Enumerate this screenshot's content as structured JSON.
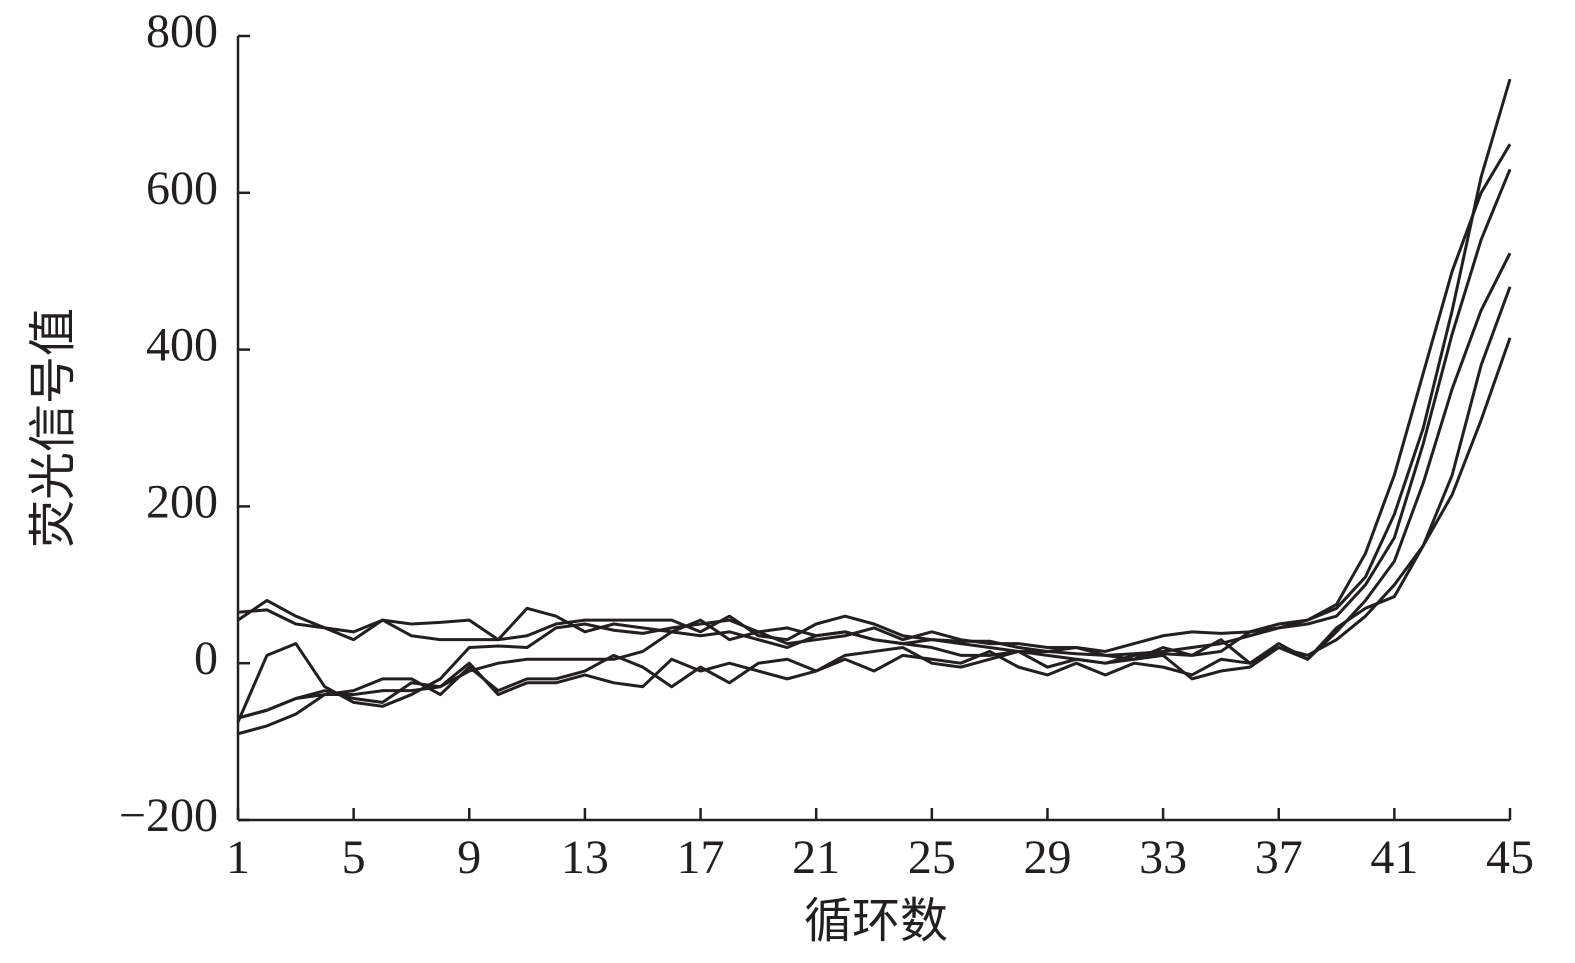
{
  "chart_data": {
    "type": "line",
    "xlabel": "循环数",
    "ylabel": "荧光信号值",
    "x": [
      1,
      2,
      3,
      4,
      5,
      6,
      7,
      8,
      9,
      10,
      11,
      12,
      13,
      14,
      15,
      16,
      17,
      18,
      19,
      20,
      21,
      22,
      23,
      24,
      25,
      26,
      27,
      28,
      29,
      30,
      31,
      32,
      33,
      34,
      35,
      36,
      37,
      38,
      39,
      40,
      41,
      42,
      43,
      44,
      45
    ],
    "xlim": [
      1,
      45
    ],
    "xticks": [
      1,
      5,
      9,
      13,
      17,
      21,
      25,
      29,
      33,
      37,
      41,
      45
    ],
    "ylim": [
      -200,
      800
    ],
    "yticks": [
      {
        "value": -200,
        "label": "−200"
      },
      0,
      200,
      400,
      600,
      800
    ],
    "grid": false,
    "series": [
      {
        "color": "#231f20",
        "values": [
          65,
          68,
          50,
          45,
          40,
          55,
          50,
          52,
          55,
          30,
          70,
          60,
          40,
          50,
          45,
          40,
          55,
          30,
          40,
          45,
          35,
          40,
          30,
          25,
          30,
          25,
          20,
          15,
          15,
          12,
          10,
          12,
          15,
          20,
          25,
          35,
          45,
          55,
          70,
          110,
          190,
          300,
          450,
          620,
          745
        ]
      },
      {
        "color": "#231f20",
        "values": [
          55,
          80,
          60,
          45,
          30,
          55,
          35,
          30,
          30,
          30,
          35,
          50,
          55,
          55,
          55,
          55,
          40,
          60,
          35,
          30,
          50,
          60,
          50,
          35,
          30,
          28,
          28,
          20,
          15,
          20,
          10,
          5,
          20,
          10,
          15,
          40,
          50,
          55,
          75,
          140,
          240,
          370,
          500,
          600,
          662
        ]
      },
      {
        "color": "#231f20",
        "values": [
          -75,
          10,
          25,
          -30,
          -50,
          -55,
          -40,
          -20,
          20,
          22,
          20,
          45,
          50,
          42,
          38,
          45,
          50,
          55,
          40,
          25,
          30,
          35,
          45,
          30,
          40,
          30,
          25,
          25,
          20,
          20,
          15,
          25,
          35,
          40,
          38,
          40,
          45,
          50,
          60,
          100,
          160,
          280,
          420,
          540,
          630
        ]
      },
      {
        "color": "#231f20",
        "values": [
          -70,
          -60,
          -45,
          -40,
          -40,
          -35,
          -35,
          -30,
          -10,
          0,
          5,
          5,
          5,
          5,
          15,
          40,
          35,
          40,
          30,
          20,
          35,
          40,
          30,
          25,
          20,
          10,
          10,
          15,
          10,
          5,
          0,
          10,
          12,
          10,
          30,
          0,
          20,
          5,
          40,
          80,
          130,
          230,
          350,
          450,
          523
        ]
      },
      {
        "color": "#231f20",
        "values": [
          -90,
          -80,
          -65,
          -40,
          -35,
          -20,
          -20,
          -40,
          -5,
          -35,
          -20,
          -20,
          -10,
          10,
          -5,
          -30,
          -5,
          -25,
          0,
          5,
          -10,
          10,
          15,
          20,
          0,
          -5,
          5,
          15,
          -5,
          5,
          0,
          5,
          10,
          -20,
          -10,
          -5,
          20,
          10,
          30,
          60,
          100,
          150,
          240,
          380,
          480
        ]
      },
      {
        "color": "#231f20",
        "values": [
          -70,
          -60,
          -45,
          -35,
          -45,
          -50,
          -25,
          -30,
          0,
          -40,
          -25,
          -25,
          -15,
          -25,
          -30,
          5,
          -10,
          0,
          -10,
          -20,
          -10,
          5,
          -10,
          10,
          5,
          0,
          15,
          -5,
          -15,
          0,
          -15,
          0,
          -5,
          -15,
          5,
          0,
          25,
          5,
          45,
          70,
          85,
          150,
          215,
          310,
          415
        ]
      }
    ]
  }
}
